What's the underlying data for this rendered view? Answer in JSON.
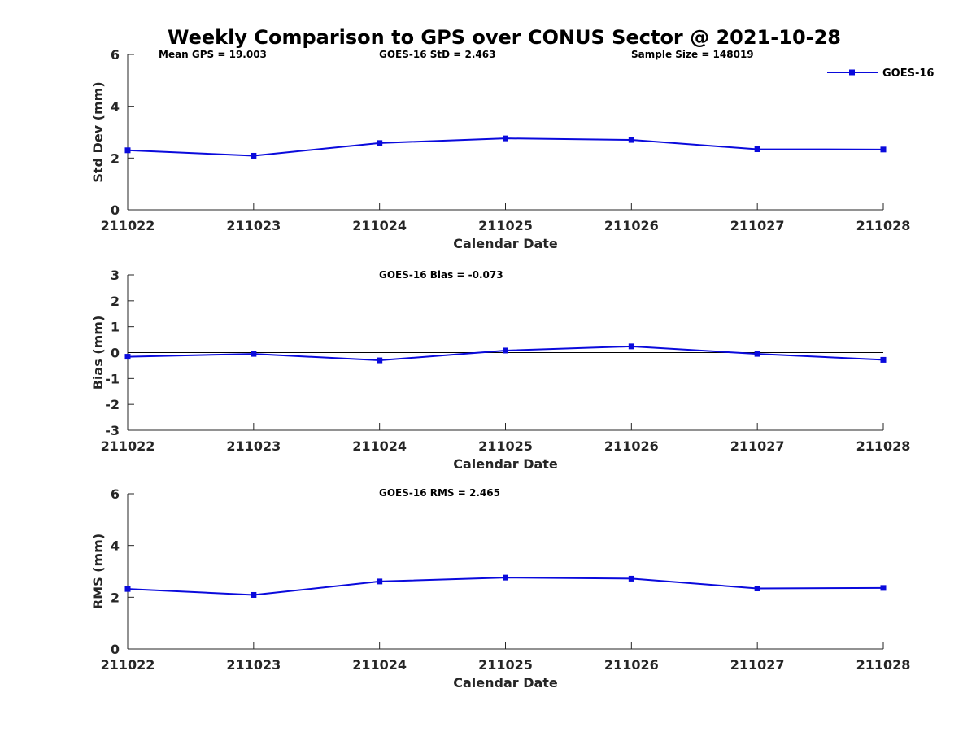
{
  "colors": {
    "series": "#0a0adc",
    "axis": "#262626",
    "zero_line": "#000000"
  },
  "chart_data": [
    {
      "type": "line",
      "title": "Weekly Comparison to GPS over CONUS Sector @ 2021-10-28",
      "annotations": [
        "Mean GPS = 19.003",
        "GOES-16 StD = 2.463",
        "Sample Size = 148019"
      ],
      "legend": [
        "GOES-16"
      ],
      "legend_position": "top-right",
      "xlabel": "Calendar Date",
      "ylabel": "Std Dev (mm)",
      "categories": [
        "211022",
        "211023",
        "211024",
        "211025",
        "211026",
        "211027",
        "211028"
      ],
      "ylim": [
        0,
        6
      ],
      "yticks": [
        "0",
        "2",
        "4",
        "6"
      ],
      "series": [
        {
          "name": "GOES-16",
          "values": [
            2.3,
            2.09,
            2.58,
            2.76,
            2.7,
            2.34,
            2.33
          ]
        }
      ],
      "grid": false
    },
    {
      "type": "line",
      "annotations": [
        "GOES-16 Bias  = -0.073"
      ],
      "xlabel": "Calendar Date",
      "ylabel": "Bias (mm)",
      "categories": [
        "211022",
        "211023",
        "211024",
        "211025",
        "211026",
        "211027",
        "211028"
      ],
      "ylim": [
        -3,
        3
      ],
      "yticks": [
        "-3",
        "-2",
        "-1",
        "0",
        "1",
        "2",
        "3"
      ],
      "series": [
        {
          "name": "GOES-16",
          "values": [
            -0.16,
            -0.05,
            -0.3,
            0.08,
            0.24,
            -0.05,
            -0.28
          ]
        }
      ],
      "zero_line": true,
      "grid": false
    },
    {
      "type": "line",
      "annotations": [
        "GOES-16 RMS = 2.465"
      ],
      "xlabel": "Calendar Date",
      "ylabel": "RMS (mm)",
      "categories": [
        "211022",
        "211023",
        "211024",
        "211025",
        "211026",
        "211027",
        "211028"
      ],
      "ylim": [
        0,
        6
      ],
      "yticks": [
        "0",
        "2",
        "4",
        "6"
      ],
      "series": [
        {
          "name": "GOES-16",
          "values": [
            2.32,
            2.09,
            2.61,
            2.76,
            2.72,
            2.34,
            2.36
          ]
        }
      ],
      "grid": false
    }
  ]
}
